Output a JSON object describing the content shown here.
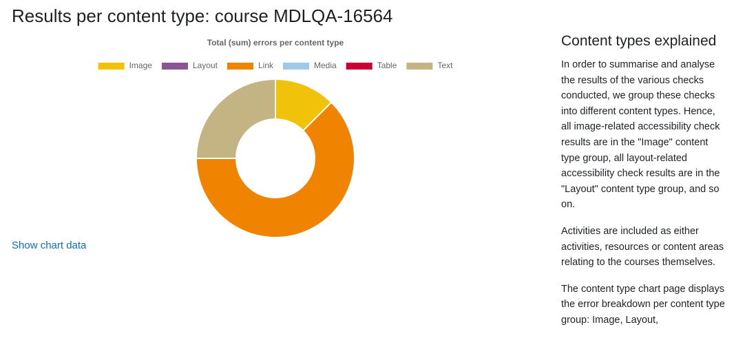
{
  "header": {
    "title": "Results per content type: course MDLQA-16564"
  },
  "chart_data": {
    "type": "doughnut",
    "title": "Total (sum) errors per content type",
    "categories": [
      "Image",
      "Layout",
      "Link",
      "Media",
      "Table",
      "Text"
    ],
    "values": [
      1,
      0,
      5,
      0,
      0,
      2
    ],
    "colors": [
      "#f0c20a",
      "#8a5596",
      "#f08400",
      "#9ecae9",
      "#c8002f",
      "#c4b383"
    ],
    "legend": "top"
  },
  "link": "Show chart data",
  "sidebar": {
    "heading": "Content types explained",
    "paragraphs": [
      "In order to summarise and analyse the results of the various checks conducted, we group these checks into different content types. Hence, all image-related accessibility check results are in the \"Image\" content type group, all layout-related accessibility check results are in the \"Layout\" content type group, and so on.",
      "Activities are included as either activities, resources or content areas relating to the courses themselves.",
      "The content type chart page displays the error breakdown per content type group: Image, Layout,"
    ]
  }
}
